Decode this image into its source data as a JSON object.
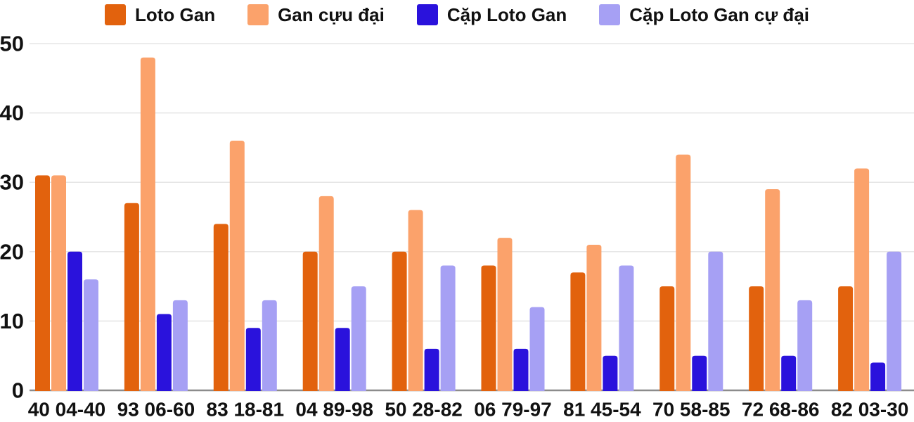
{
  "chart_data": {
    "type": "bar",
    "categories": [
      "40 04-40",
      "93 06-60",
      "83 18-81",
      "04 89-98",
      "50 28-82",
      "06 79-97",
      "81 45-54",
      "70 58-85",
      "72 68-86",
      "82 03-30"
    ],
    "series": [
      {
        "name": "Loto Gan",
        "color": "#E2620D",
        "values": [
          31,
          27,
          24,
          20,
          20,
          18,
          17,
          15,
          15,
          15
        ]
      },
      {
        "name": "Gan cựu đại",
        "color": "#FBA26B",
        "values": [
          31,
          48,
          36,
          28,
          26,
          22,
          21,
          34,
          29,
          32
        ]
      },
      {
        "name": "Cặp Loto Gan",
        "color": "#2A12DC",
        "values": [
          20,
          11,
          9,
          9,
          6,
          6,
          5,
          5,
          5,
          4
        ]
      },
      {
        "name": "Cặp Loto Gan cự đại",
        "color": "#A6A0F4",
        "values": [
          16,
          13,
          13,
          15,
          18,
          12,
          18,
          20,
          13,
          20
        ]
      }
    ],
    "y_ticks": [
      0,
      10,
      20,
      30,
      40,
      50
    ],
    "ylim": [
      0,
      50
    ],
    "grid": true,
    "legend_position": "top",
    "title": "",
    "xlabel": "",
    "ylabel": ""
  },
  "colors": {
    "gridline": "#E6E6E6",
    "baseline": "#8C8C8C",
    "text": "#111111",
    "background": "#FFFFFF"
  }
}
